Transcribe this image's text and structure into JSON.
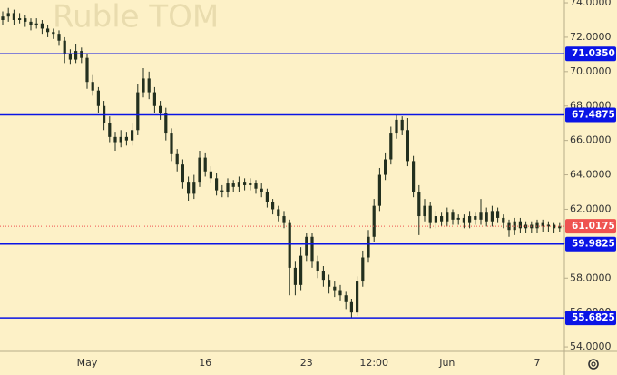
{
  "chart_data": {
    "type": "candlestick",
    "title": "Ruble TOM",
    "color": "#23301f",
    "background": "#fdf1c7",
    "categories": [
      null,
      null,
      null,
      null,
      null,
      null,
      null,
      null,
      null,
      null,
      null,
      null,
      null,
      null,
      null,
      "May",
      null,
      null,
      null,
      null,
      null,
      null,
      null,
      null,
      null,
      null,
      null,
      null,
      null,
      null,
      null,
      null,
      null,
      null,
      null,
      null,
      "16",
      null,
      null,
      null,
      null,
      null,
      null,
      null,
      null,
      null,
      null,
      null,
      null,
      null,
      null,
      null,
      null,
      null,
      "23",
      null,
      null,
      null,
      null,
      null,
      null,
      null,
      null,
      null,
      null,
      null,
      "12:00",
      null,
      null,
      null,
      null,
      null,
      null,
      null,
      null,
      null,
      null,
      null,
      null,
      "Jun",
      null,
      null,
      null,
      null,
      null,
      null,
      null,
      null,
      null,
      null,
      null,
      null,
      null,
      null,
      null,
      "7",
      null,
      null,
      null,
      null
    ],
    "open": [
      73.0,
      73.2,
      73.4,
      73.0,
      73.1,
      72.9,
      72.7,
      72.8,
      72.5,
      72.3,
      72.2,
      71.8,
      71.0,
      70.7,
      71.2,
      70.8,
      69.4,
      68.9,
      68.0,
      67.0,
      66.2,
      65.9,
      66.2,
      66.0,
      66.6,
      68.8,
      69.6,
      68.8,
      68.0,
      67.6,
      66.4,
      65.2,
      64.6,
      63.6,
      62.9,
      63.6,
      65.0,
      64.2,
      63.8,
      63.1,
      63.0,
      63.5,
      63.3,
      63.6,
      63.4,
      63.5,
      63.2,
      63.0,
      62.4,
      62.0,
      61.6,
      61.2,
      58.6,
      57.6,
      59.3,
      60.4,
      59.0,
      58.4,
      57.9,
      57.5,
      57.3,
      57.0,
      56.6,
      56.0,
      57.8,
      59.2,
      60.4,
      62.2,
      64.0,
      64.9,
      66.4,
      67.2,
      66.6,
      64.8,
      63.0,
      61.6,
      62.2,
      61.2,
      61.6,
      61.3,
      61.8,
      61.4,
      61.5,
      61.2,
      61.6,
      61.4,
      61.8,
      61.3,
      61.9,
      61.5,
      61.2,
      60.8,
      61.3,
      60.9,
      61.1,
      60.9,
      61.2,
      61.0,
      61.1,
      60.9
    ],
    "high": [
      73.5,
      73.7,
      73.6,
      73.4,
      73.3,
      73.1,
      73.1,
      73.0,
      72.7,
      72.5,
      72.4,
      72.0,
      71.3,
      71.6,
      71.4,
      71.0,
      69.8,
      69.1,
      68.3,
      67.4,
      66.5,
      66.6,
      66.5,
      67.0,
      69.3,
      70.2,
      70.0,
      69.1,
      68.3,
      67.9,
      66.7,
      65.5,
      64.9,
      63.9,
      64.0,
      65.4,
      65.3,
      64.5,
      64.1,
      63.4,
      63.8,
      63.7,
      63.9,
      63.8,
      63.8,
      63.7,
      63.5,
      63.2,
      62.6,
      62.2,
      61.9,
      61.4,
      59.0,
      59.8,
      60.6,
      60.6,
      59.3,
      58.7,
      58.2,
      57.8,
      57.6,
      57.2,
      56.8,
      58.1,
      59.6,
      60.8,
      62.6,
      64.4,
      65.3,
      66.8,
      67.5,
      67.4,
      67.3,
      65.1,
      63.4,
      62.6,
      62.4,
      61.9,
      61.8,
      62.1,
      62.0,
      61.7,
      61.7,
      61.9,
      61.8,
      62.6,
      62.1,
      62.2,
      62.1,
      61.7,
      61.4,
      61.5,
      61.5,
      61.3,
      61.3,
      61.4,
      61.4,
      61.3,
      61.2,
      61.2
    ],
    "low": [
      72.7,
      72.9,
      72.7,
      72.8,
      72.6,
      72.4,
      72.5,
      72.2,
      72.0,
      71.9,
      71.5,
      70.5,
      70.4,
      70.5,
      70.5,
      69.0,
      68.6,
      67.6,
      66.6,
      65.9,
      65.4,
      65.6,
      65.7,
      65.7,
      66.3,
      68.5,
      68.4,
      67.6,
      67.2,
      66.0,
      64.8,
      64.2,
      63.2,
      62.5,
      62.6,
      63.3,
      63.9,
      63.5,
      62.8,
      62.7,
      62.7,
      63.0,
      63.0,
      63.1,
      63.1,
      62.9,
      62.7,
      62.1,
      61.7,
      61.3,
      60.9,
      57.0,
      57.0,
      57.3,
      59.0,
      58.6,
      58.0,
      57.5,
      57.1,
      56.9,
      56.7,
      56.2,
      55.7,
      55.8,
      57.5,
      58.9,
      60.1,
      61.9,
      63.7,
      64.6,
      66.1,
      66.3,
      64.5,
      62.7,
      60.5,
      61.3,
      60.9,
      60.9,
      61.0,
      61.0,
      61.1,
      61.1,
      60.9,
      60.9,
      61.1,
      61.1,
      61.0,
      61.0,
      61.2,
      60.9,
      60.4,
      60.5,
      60.6,
      60.6,
      60.6,
      60.6,
      60.7,
      60.7,
      60.6,
      60.7
    ],
    "close": [
      73.2,
      73.4,
      73.0,
      73.1,
      72.9,
      72.7,
      72.8,
      72.5,
      72.3,
      72.2,
      71.8,
      71.0,
      70.7,
      71.2,
      70.8,
      69.4,
      68.9,
      68.0,
      67.0,
      66.2,
      65.9,
      66.2,
      66.0,
      66.6,
      68.8,
      69.6,
      68.8,
      68.0,
      67.6,
      66.4,
      65.2,
      64.6,
      63.6,
      62.9,
      63.6,
      65.0,
      64.2,
      63.8,
      63.1,
      63.0,
      63.5,
      63.3,
      63.6,
      63.4,
      63.5,
      63.2,
      63.0,
      62.4,
      62.0,
      61.6,
      61.2,
      58.6,
      57.6,
      59.3,
      60.4,
      59.0,
      58.4,
      57.9,
      57.5,
      57.3,
      57.0,
      56.6,
      56.0,
      57.8,
      59.2,
      60.4,
      62.2,
      64.0,
      64.9,
      66.4,
      67.2,
      66.6,
      64.8,
      63.0,
      61.6,
      62.2,
      61.2,
      61.6,
      61.3,
      61.8,
      61.4,
      61.5,
      61.2,
      61.6,
      61.4,
      61.8,
      61.3,
      61.9,
      61.5,
      61.2,
      60.8,
      61.3,
      60.9,
      61.1,
      60.9,
      61.2,
      61.0,
      61.1,
      60.9,
      61.0
    ],
    "ylim": [
      53.74,
      74.16
    ],
    "yticks": [
      {
        "value": 54,
        "label": "54.0000"
      },
      {
        "value": 56,
        "label": "56.0000"
      },
      {
        "value": 58,
        "label": "58.0000"
      },
      {
        "value": 60,
        "label": "60.0000"
      },
      {
        "value": 62,
        "label": "62.0000"
      },
      {
        "value": 64,
        "label": "64.0000"
      },
      {
        "value": 66,
        "label": "66.0000"
      },
      {
        "value": 68,
        "label": "68.0000"
      },
      {
        "value": 70,
        "label": "70.0000"
      },
      {
        "value": 72,
        "label": "72.0000"
      },
      {
        "value": 74,
        "label": "74.0000"
      }
    ],
    "levels": [
      {
        "value": 71.035,
        "label": "71.0350",
        "color": "#0a14e6"
      },
      {
        "value": 67.4875,
        "label": "67.4875",
        "color": "#0a14e6"
      },
      {
        "value": 59.9825,
        "label": "59.9825",
        "color": "#0a14e6"
      },
      {
        "value": 55.6825,
        "label": "55.6825",
        "color": "#0a14e6"
      }
    ],
    "last_price": {
      "value": 61.0175,
      "label": "61.0175",
      "color": "#ef5350"
    }
  }
}
